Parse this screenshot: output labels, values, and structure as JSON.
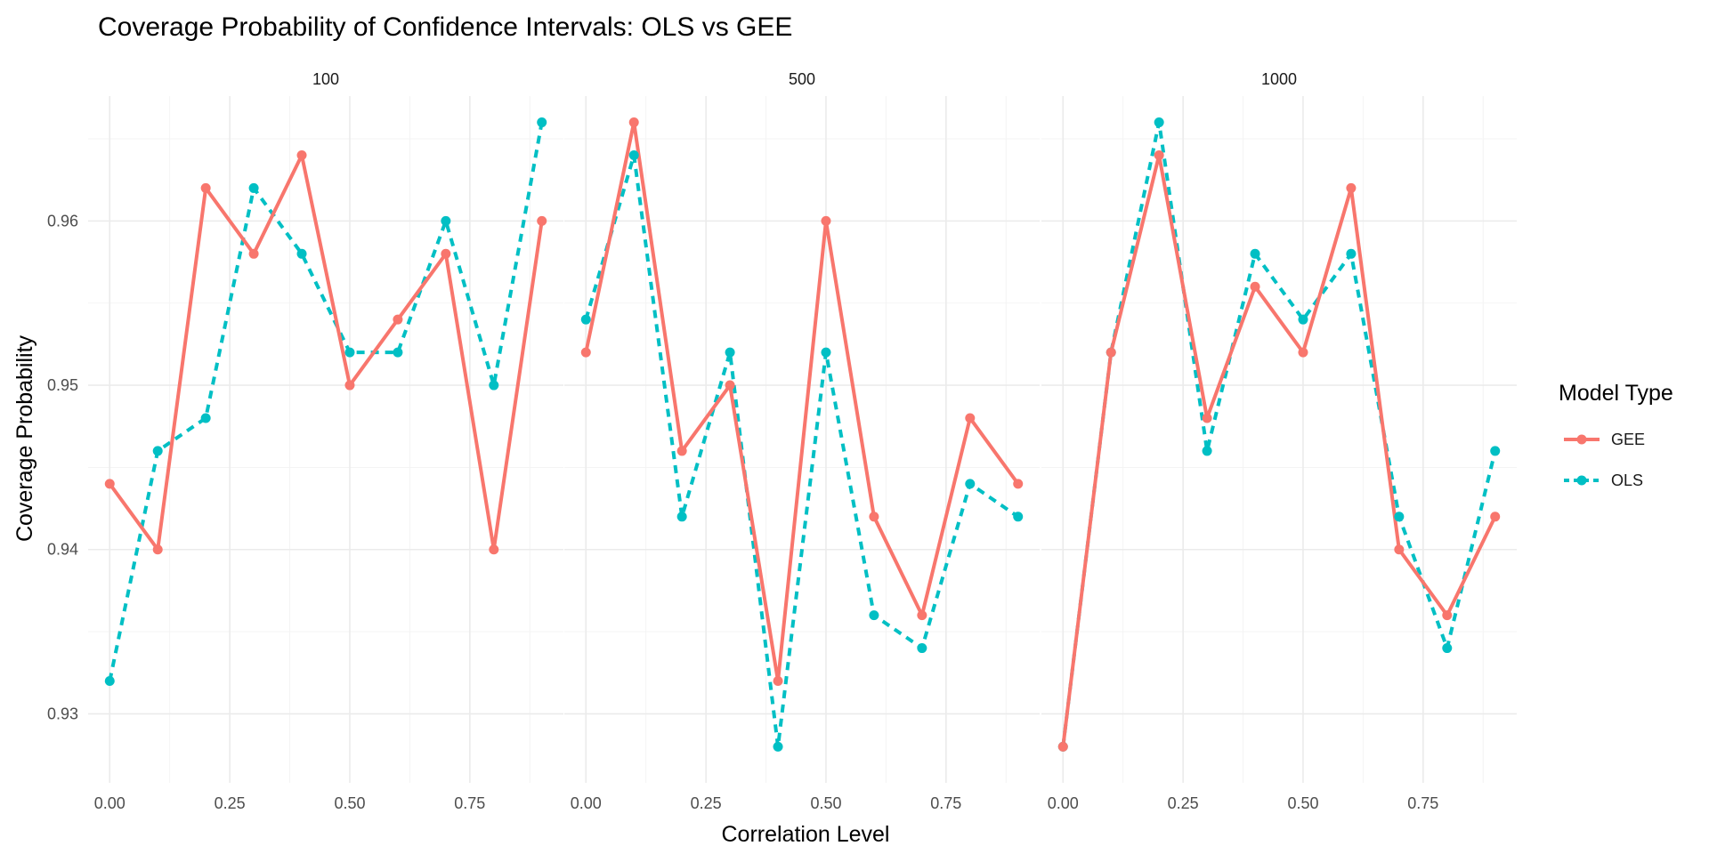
{
  "chart_data": {
    "type": "line",
    "title": "Coverage Probability of Confidence Intervals: OLS vs GEE",
    "xlabel": "Correlation Level",
    "ylabel": "Coverage Probability",
    "x": [
      0.0,
      0.1,
      0.2,
      0.3,
      0.4,
      0.5,
      0.6,
      0.7,
      0.8,
      0.9
    ],
    "xlim": [
      -0.045,
      0.945
    ],
    "ylim": [
      0.9258,
      0.9676
    ],
    "x_ticks": [
      0.0,
      0.25,
      0.5,
      0.75
    ],
    "x_tick_labels": [
      "0.00",
      "0.25",
      "0.50",
      "0.75"
    ],
    "y_ticks": [
      0.93,
      0.94,
      0.95,
      0.96
    ],
    "y_tick_labels": [
      "0.93",
      "0.94",
      "0.95",
      "0.96"
    ],
    "grid": true,
    "legend": {
      "title": "Model Type",
      "position": "right",
      "entries": [
        {
          "label": "GEE",
          "color": "#F8766D",
          "dash": "solid"
        },
        {
          "label": "OLS",
          "color": "#00BFC4",
          "dash": "dotted"
        }
      ]
    },
    "facets": [
      {
        "label": "100",
        "series": [
          {
            "name": "GEE",
            "values": [
              0.944,
              0.94,
              0.962,
              0.958,
              0.964,
              0.95,
              0.954,
              0.958,
              0.94,
              0.96
            ]
          },
          {
            "name": "OLS",
            "values": [
              0.932,
              0.946,
              0.948,
              0.962,
              0.958,
              0.952,
              0.952,
              0.96,
              0.95,
              0.966
            ]
          }
        ]
      },
      {
        "label": "500",
        "series": [
          {
            "name": "GEE",
            "values": [
              0.952,
              0.966,
              0.946,
              0.95,
              0.932,
              0.96,
              0.942,
              0.936,
              0.948,
              0.944
            ]
          },
          {
            "name": "OLS",
            "values": [
              0.954,
              0.964,
              0.942,
              0.952,
              0.928,
              0.952,
              0.936,
              0.934,
              0.944,
              0.942
            ]
          }
        ]
      },
      {
        "label": "1000",
        "series": [
          {
            "name": "GEE",
            "values": [
              0.928,
              0.952,
              0.964,
              0.948,
              0.956,
              0.952,
              0.962,
              0.94,
              0.936,
              0.942
            ]
          },
          {
            "name": "OLS",
            "values": [
              0.928,
              0.952,
              0.966,
              0.946,
              0.958,
              0.954,
              0.958,
              0.942,
              0.934,
              0.946
            ]
          }
        ]
      }
    ]
  }
}
